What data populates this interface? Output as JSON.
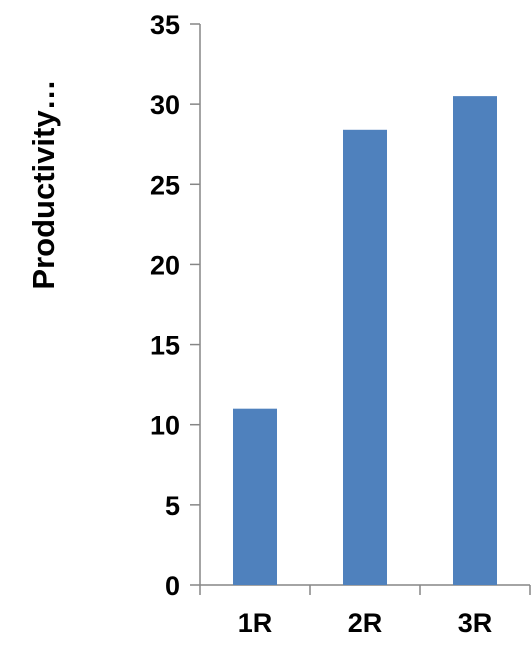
{
  "chart_data": {
    "type": "bar",
    "title": "",
    "xlabel": "",
    "ylabel": "Productivity…",
    "categories": [
      "1R",
      "2R",
      "3R"
    ],
    "values": [
      11.0,
      28.4,
      30.5
    ],
    "ylim": [
      0,
      35
    ],
    "yticks": [
      0,
      5,
      10,
      15,
      20,
      25,
      30,
      35
    ],
    "ytick_labels": [
      "0",
      "5",
      "10",
      "15",
      "20",
      "25",
      "30",
      "35"
    ],
    "grid": false,
    "legend": "none",
    "bar_color": "#4F81BD",
    "axis_color": "#868686"
  }
}
